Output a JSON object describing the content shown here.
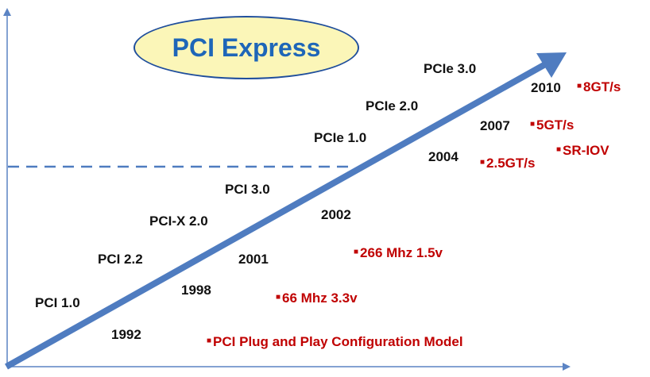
{
  "title": "PCI Express",
  "colors": {
    "axis": "#5b84c4",
    "arrow": "#4f7cc0",
    "title_fill": "#fbf6b8",
    "title_border": "#1f4e9c",
    "title_text": "#1e66b8",
    "feature_text": "#c00000",
    "label_text": "#111111"
  },
  "versions": [
    "PCI 1.0",
    "PCI 2.2",
    "PCI-X 2.0",
    "PCI 3.0",
    "PCIe 1.0",
    "PCIe 2.0",
    "PCIe 3.0"
  ],
  "years": [
    "1992",
    "1998",
    "2001",
    "2002",
    "2004",
    "2007",
    "2010"
  ],
  "features": [
    "PCI Plug and Play Configuration Model",
    "66 Mhz 3.3v",
    "266 Mhz 1.5v",
    "2.5GT/s",
    "SR-IOV",
    "5GT/s",
    "8GT/s"
  ]
}
